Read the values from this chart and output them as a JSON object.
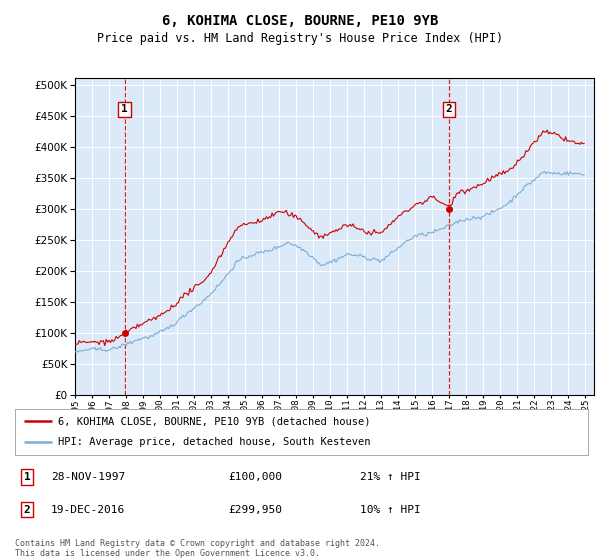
{
  "title": "6, KOHIMA CLOSE, BOURNE, PE10 9YB",
  "subtitle": "Price paid vs. HM Land Registry's House Price Index (HPI)",
  "ylim": [
    0,
    510000
  ],
  "yticks": [
    0,
    50000,
    100000,
    150000,
    200000,
    250000,
    300000,
    350000,
    400000,
    450000,
    500000
  ],
  "xlim_start": 1995.0,
  "xlim_end": 2025.5,
  "background_color": "#dce9f8",
  "red_line_color": "#cc0000",
  "blue_line_color": "#7aaed6",
  "sale1_x": 1997.91,
  "sale1_y": 100000,
  "sale1_label": "1",
  "sale1_date": "28-NOV-1997",
  "sale1_price": "£100,000",
  "sale1_hpi": "21% ↑ HPI",
  "sale2_x": 2016.96,
  "sale2_y": 299950,
  "sale2_label": "2",
  "sale2_date": "19-DEC-2016",
  "sale2_price": "£299,950",
  "sale2_hpi": "10% ↑ HPI",
  "legend_label_red": "6, KOHIMA CLOSE, BOURNE, PE10 9YB (detached house)",
  "legend_label_blue": "HPI: Average price, detached house, South Kesteven",
  "footer": "Contains HM Land Registry data © Crown copyright and database right 2024.\nThis data is licensed under the Open Government Licence v3.0."
}
